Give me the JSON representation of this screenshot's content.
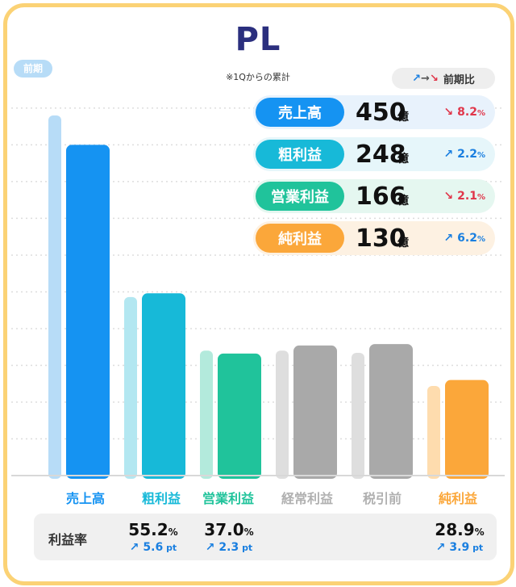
{
  "title": "PL",
  "note": "※1Qからの累計",
  "prev_label": "前期",
  "legend": {
    "up": "↗",
    "arrow": "→",
    "down": "↘",
    "label": "前期比"
  },
  "kpis": [
    {
      "name": "売上高",
      "value": "450",
      "unit": "億",
      "dir": "down",
      "arrow": "↘",
      "change": "8.2",
      "pct": "%",
      "pill_color": "#1593f2",
      "row_bg": "#e8f2fc"
    },
    {
      "name": "粗利益",
      "value": "248",
      "unit": "億",
      "dir": "up",
      "arrow": "↗",
      "change": "2.2",
      "pct": "%",
      "pill_color": "#17b9d8",
      "row_bg": "#e6f6fa"
    },
    {
      "name": "営業利益",
      "value": "166",
      "unit": "億",
      "dir": "down",
      "arrow": "↘",
      "change": "2.1",
      "pct": "%",
      "pill_color": "#20c39b",
      "row_bg": "#e5f7f0"
    },
    {
      "name": "純利益",
      "value": "130",
      "unit": "億",
      "dir": "up",
      "arrow": "↗",
      "change": "6.2",
      "pct": "%",
      "pill_color": "#fba73a",
      "row_bg": "#fdf1e2"
    }
  ],
  "margin": {
    "label": "利益率",
    "items": [
      {
        "value": "55.2",
        "pct": "%",
        "arrow": "↗",
        "change": "5.6",
        "unit": "pt"
      },
      {
        "value": "37.0",
        "pct": "%",
        "arrow": "↗",
        "change": "2.3",
        "unit": "pt"
      },
      {
        "value": "28.9",
        "pct": "%",
        "arrow": "↗",
        "change": "3.9",
        "unit": "pt"
      }
    ]
  },
  "chart_data": {
    "type": "bar",
    "title": "PL",
    "categories": [
      "売上高",
      "粗利益",
      "営業利益",
      "経常利益",
      "税引前",
      "純利益"
    ],
    "series": [
      {
        "name": "前期",
        "values": [
          490,
          243,
          170,
          170,
          167,
          122
        ]
      },
      {
        "values": [
          450,
          248,
          166,
          177,
          179,
          130
        ]
      }
    ],
    "colors": [
      "#1593f2",
      "#17b9d8",
      "#20c39b",
      "#a9a9a9",
      "#a9a9a9",
      "#fba73a"
    ],
    "prev_colors": [
      "#b7dcf7",
      "#b3e7f1",
      "#b3eadc",
      "#dedede",
      "#dedede",
      "#fedcae"
    ],
    "label_colors": [
      "#1593f2",
      "#17b9d8",
      "#20c39b",
      "#b0b0b0",
      "#b0b0b0",
      "#fba73a"
    ],
    "ylim": [
      0,
      500
    ],
    "grid": true
  }
}
